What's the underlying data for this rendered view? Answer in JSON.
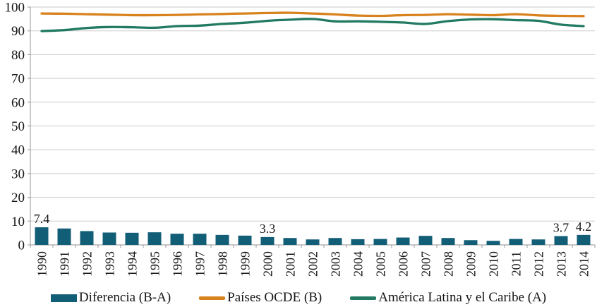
{
  "chart_data": {
    "type": "combo-bar-line",
    "title": "",
    "xlabel": "",
    "ylabel": "",
    "x": [
      1990,
      1991,
      1992,
      1993,
      1994,
      1995,
      1996,
      1997,
      1998,
      1999,
      2000,
      2001,
      2002,
      2003,
      2004,
      2005,
      2006,
      2007,
      2008,
      2009,
      2010,
      2011,
      2012,
      2013,
      2014
    ],
    "series": [
      {
        "name": "Diferencia (B-A)",
        "type": "bar",
        "color": "#135e77",
        "values": [
          7.4,
          6.9,
          5.8,
          5.2,
          5.1,
          5.3,
          4.7,
          4.7,
          4.2,
          3.9,
          3.3,
          2.9,
          2.3,
          2.9,
          2.4,
          2.5,
          3.1,
          3.8,
          2.9,
          2.0,
          1.7,
          2.5,
          2.3,
          3.7,
          4.2
        ]
      },
      {
        "name": "Países OCDE (B)",
        "type": "line",
        "color": "#d8821e",
        "values": [
          97.3,
          97.2,
          97.0,
          96.8,
          96.6,
          96.6,
          96.7,
          96.9,
          97.1,
          97.3,
          97.5,
          97.6,
          97.3,
          96.9,
          96.4,
          96.3,
          96.6,
          96.7,
          97.0,
          96.8,
          96.6,
          97.0,
          96.5,
          96.3,
          96.2
        ]
      },
      {
        "name": "América Latina y el Caribe (A)",
        "type": "line",
        "color": "#217a61",
        "values": [
          89.9,
          90.3,
          91.2,
          91.6,
          91.5,
          91.3,
          92.0,
          92.2,
          92.9,
          93.4,
          94.2,
          94.7,
          95.0,
          94.0,
          94.0,
          93.8,
          93.5,
          92.9,
          94.1,
          94.8,
          94.9,
          94.5,
          94.2,
          92.6,
          92.0
        ]
      }
    ],
    "data_labels": [
      {
        "year": 1990,
        "text": "7.4"
      },
      {
        "year": 2000,
        "text": "3.3"
      },
      {
        "year": 2013,
        "text": "3.7"
      },
      {
        "year": 2014,
        "text": "4.2"
      }
    ],
    "yticks": [
      0,
      10,
      20,
      30,
      40,
      50,
      60,
      70,
      80,
      90,
      100
    ],
    "ylim": [
      0,
      100
    ],
    "grid": true,
    "legend_position": "bottom"
  },
  "colors": {
    "gridline": "#cbcbcb",
    "axis": "#a6a6a6",
    "text": "#151515",
    "background": "#ffffff"
  }
}
